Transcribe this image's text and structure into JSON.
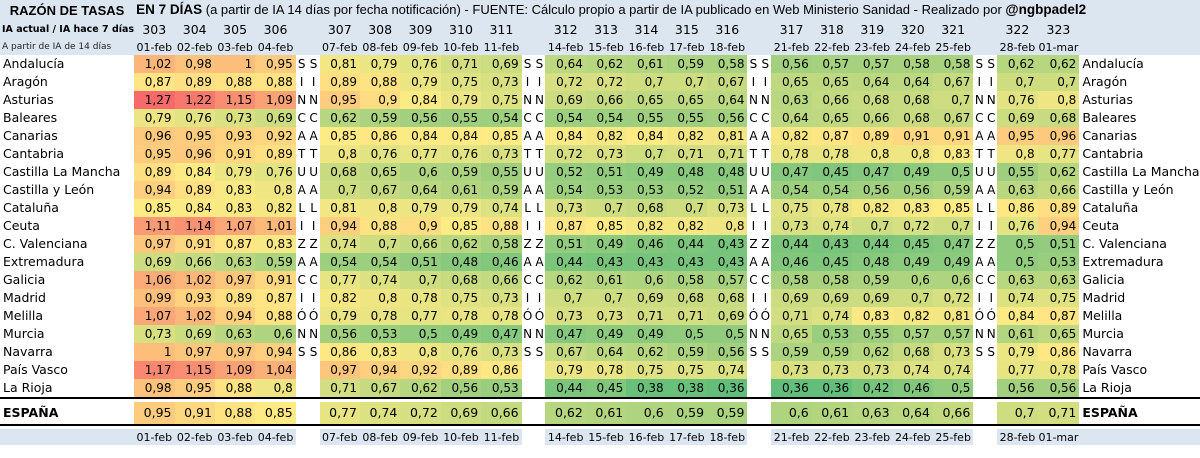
{
  "header": {
    "lead": "RAZÓN DE TASAS",
    "title_bold": "EN 7 DÍAS",
    "title_rest": " (a partir de IA 14 días por fecha notificación) - FUENTE: Cálculo propio a partir de IA publicado en Web Ministerio Sanidad - Realizado por ",
    "author": "@ngbpadel2",
    "subtitle1": "IA actual / IA hace 7 días",
    "subtitle2": "A partir de IA de 14 días"
  },
  "groups": [
    {
      "numbers": [
        "303",
        "304",
        "305",
        "306"
      ],
      "dates": [
        "01-feb",
        "02-feb",
        "03-feb",
        "04-feb"
      ],
      "sep": "SIN"
    },
    {
      "numbers": [
        "307",
        "308",
        "309",
        "310",
        "311"
      ],
      "dates": [
        "07-feb",
        "08-feb",
        "09-feb",
        "10-feb",
        "11-feb"
      ],
      "sep": "SIN"
    },
    {
      "numbers": [
        "312",
        "313",
        "314",
        "315",
        "316"
      ],
      "dates": [
        "14-feb",
        "15-feb",
        "16-feb",
        "17-feb",
        "18-feb"
      ],
      "sep": "SIN"
    },
    {
      "numbers": [
        "317",
        "318",
        "319",
        "320",
        "321"
      ],
      "dates": [
        "21-feb",
        "22-feb",
        "23-feb",
        "24-feb",
        "25-feb"
      ],
      "sep": "SIN"
    },
    {
      "numbers": [
        "322",
        "323"
      ],
      "dates": [
        "28-feb",
        "01-mar"
      ],
      "sep": null
    }
  ],
  "sep_words": {
    "SIN": [
      "S",
      "I",
      "N",
      "C",
      "A",
      "T",
      "U",
      "A",
      "L",
      "I",
      "Z",
      "A",
      "C",
      "I",
      "Ó",
      "N",
      "S"
    ]
  },
  "chart_data": {
    "type": "table",
    "columns": [
      "01-feb",
      "02-feb",
      "03-feb",
      "04-feb",
      "07-feb",
      "08-feb",
      "09-feb",
      "10-feb",
      "11-feb",
      "14-feb",
      "15-feb",
      "16-feb",
      "17-feb",
      "18-feb",
      "21-feb",
      "22-feb",
      "23-feb",
      "24-feb",
      "25-feb",
      "28-feb",
      "01-mar"
    ],
    "column_numbers": [
      "303",
      "304",
      "305",
      "306",
      "307",
      "308",
      "309",
      "310",
      "311",
      "312",
      "313",
      "314",
      "315",
      "316",
      "317",
      "318",
      "319",
      "320",
      "321",
      "322",
      "323"
    ],
    "rows": [
      {
        "name": "Andalucía",
        "values": [
          "1,02",
          "0,98",
          "1",
          "0,95",
          "0,81",
          "0,79",
          "0,76",
          "0,71",
          "0,69",
          "0,64",
          "0,62",
          "0,61",
          "0,59",
          "0,58",
          "0,56",
          "0,57",
          "0,57",
          "0,58",
          "0,58",
          "0,62",
          "0,62"
        ]
      },
      {
        "name": "Aragón",
        "values": [
          "0,87",
          "0,89",
          "0,88",
          "0,88",
          "0,89",
          "0,88",
          "0,79",
          "0,75",
          "0,73",
          "0,72",
          "0,72",
          "0,7",
          "0,7",
          "0,67",
          "0,65",
          "0,65",
          "0,64",
          "0,64",
          "0,67",
          "0,7",
          "0,7"
        ]
      },
      {
        "name": "Asturias",
        "values": [
          "1,27",
          "1,22",
          "1,15",
          "1,09",
          "0,95",
          "0,9",
          "0,84",
          "0,79",
          "0,75",
          "0,69",
          "0,66",
          "0,65",
          "0,65",
          "0,64",
          "0,63",
          "0,66",
          "0,68",
          "0,68",
          "0,7",
          "0,76",
          "0,8"
        ]
      },
      {
        "name": "Baleares",
        "values": [
          "0,79",
          "0,76",
          "0,73",
          "0,69",
          "0,62",
          "0,59",
          "0,56",
          "0,55",
          "0,54",
          "0,54",
          "0,54",
          "0,55",
          "0,55",
          "0,56",
          "0,64",
          "0,65",
          "0,66",
          "0,68",
          "0,67",
          "0,69",
          "0,68"
        ]
      },
      {
        "name": "Canarias",
        "values": [
          "0,96",
          "0,95",
          "0,93",
          "0,92",
          "0,85",
          "0,86",
          "0,84",
          "0,84",
          "0,85",
          "0,84",
          "0,82",
          "0,84",
          "0,82",
          "0,81",
          "0,82",
          "0,87",
          "0,89",
          "0,91",
          "0,91",
          "0,95",
          "0,96"
        ]
      },
      {
        "name": "Cantabria",
        "values": [
          "0,95",
          "0,96",
          "0,91",
          "0,89",
          "0,8",
          "0,76",
          "0,77",
          "0,76",
          "0,73",
          "0,72",
          "0,73",
          "0,7",
          "0,71",
          "0,71",
          "0,78",
          "0,78",
          "0,8",
          "0,8",
          "0,83",
          "0,8",
          "0,77"
        ]
      },
      {
        "name": "Castilla La Mancha",
        "values": [
          "0,89",
          "0,84",
          "0,79",
          "0,76",
          "0,68",
          "0,65",
          "0,6",
          "0,59",
          "0,55",
          "0,52",
          "0,51",
          "0,49",
          "0,48",
          "0,48",
          "0,47",
          "0,45",
          "0,47",
          "0,49",
          "0,5",
          "0,55",
          "0,62"
        ]
      },
      {
        "name": "Castilla y León",
        "values": [
          "0,94",
          "0,89",
          "0,83",
          "0,8",
          "0,7",
          "0,67",
          "0,64",
          "0,61",
          "0,59",
          "0,54",
          "0,53",
          "0,53",
          "0,52",
          "0,51",
          "0,54",
          "0,54",
          "0,56",
          "0,56",
          "0,59",
          "0,63",
          "0,66"
        ]
      },
      {
        "name": "Cataluña",
        "values": [
          "0,85",
          "0,84",
          "0,83",
          "0,82",
          "0,81",
          "0,8",
          "0,79",
          "0,79",
          "0,74",
          "0,73",
          "0,7",
          "0,68",
          "0,7",
          "0,73",
          "0,75",
          "0,78",
          "0,82",
          "0,83",
          "0,85",
          "0,86",
          "0,89"
        ]
      },
      {
        "name": "Ceuta",
        "values": [
          "1,11",
          "1,14",
          "1,07",
          "1,01",
          "0,94",
          "0,88",
          "0,9",
          "0,85",
          "0,88",
          "0,87",
          "0,85",
          "0,82",
          "0,82",
          "0,8",
          "0,73",
          "0,74",
          "0,7",
          "0,72",
          "0,7",
          "0,76",
          "0,94"
        ]
      },
      {
        "name": "C. Valenciana",
        "values": [
          "0,97",
          "0,91",
          "0,87",
          "0,83",
          "0,74",
          "0,7",
          "0,66",
          "0,62",
          "0,58",
          "0,51",
          "0,49",
          "0,46",
          "0,44",
          "0,43",
          "0,44",
          "0,43",
          "0,44",
          "0,45",
          "0,47",
          "0,5",
          "0,51"
        ]
      },
      {
        "name": "Extremadura",
        "values": [
          "0,69",
          "0,66",
          "0,63",
          "0,59",
          "0,54",
          "0,54",
          "0,51",
          "0,48",
          "0,46",
          "0,44",
          "0,43",
          "0,43",
          "0,43",
          "0,43",
          "0,46",
          "0,45",
          "0,48",
          "0,49",
          "0,49",
          "0,5",
          "0,53"
        ]
      },
      {
        "name": "Galicia",
        "values": [
          "1,06",
          "1,02",
          "0,97",
          "0,91",
          "0,77",
          "0,74",
          "0,7",
          "0,68",
          "0,66",
          "0,62",
          "0,61",
          "0,6",
          "0,58",
          "0,57",
          "0,58",
          "0,58",
          "0,59",
          "0,6",
          "0,6",
          "0,63",
          "0,63"
        ]
      },
      {
        "name": "Madrid",
        "values": [
          "0,99",
          "0,93",
          "0,89",
          "0,87",
          "0,82",
          "0,8",
          "0,78",
          "0,75",
          "0,73",
          "0,7",
          "0,7",
          "0,69",
          "0,68",
          "0,68",
          "0,69",
          "0,69",
          "0,69",
          "0,7",
          "0,72",
          "0,74",
          "0,75"
        ]
      },
      {
        "name": "Melilla",
        "values": [
          "1,07",
          "1,02",
          "0,94",
          "0,88",
          "0,79",
          "0,78",
          "0,77",
          "0,78",
          "0,78",
          "0,73",
          "0,73",
          "0,71",
          "0,71",
          "0,69",
          "0,71",
          "0,74",
          "0,83",
          "0,82",
          "0,81",
          "0,84",
          "0,87"
        ]
      },
      {
        "name": "Murcia",
        "values": [
          "0,73",
          "0,69",
          "0,63",
          "0,6",
          "0,56",
          "0,53",
          "0,5",
          "0,49",
          "0,47",
          "0,47",
          "0,49",
          "0,49",
          "0,5",
          "0,5",
          "0,65",
          "0,53",
          "0,55",
          "0,57",
          "0,57",
          "0,61",
          "0,65"
        ]
      },
      {
        "name": "Navarra",
        "values": [
          "1",
          "0,97",
          "0,97",
          "0,94",
          "0,86",
          "0,83",
          "0,8",
          "0,76",
          "0,73",
          "0,67",
          "0,64",
          "0,62",
          "0,59",
          "0,56",
          "0,59",
          "0,59",
          "0,62",
          "0,68",
          "0,73",
          "0,79",
          "0,86"
        ]
      },
      {
        "name": "País Vasco",
        "values": [
          "1,17",
          "1,15",
          "1,09",
          "1,04",
          "0,97",
          "0,94",
          "0,92",
          "0,89",
          "0,86",
          "0,79",
          "0,78",
          "0,75",
          "0,75",
          "0,74",
          "0,73",
          "0,73",
          "0,73",
          "0,74",
          "0,74",
          "0,77",
          "0,78"
        ]
      },
      {
        "name": "La Rioja",
        "values": [
          "0,98",
          "0,95",
          "0,88",
          "0,8",
          "0,71",
          "0,67",
          "0,62",
          "0,56",
          "0,53",
          "0,44",
          "0,45",
          "0,38",
          "0,38",
          "0,36",
          "0,36",
          "0,36",
          "0,42",
          "0,46",
          "0,5",
          "0,56",
          "0,56"
        ]
      }
    ],
    "total": {
      "name": "ESPAÑA",
      "values": [
        "0,95",
        "0,91",
        "0,88",
        "0,85",
        "0,77",
        "0,74",
        "0,72",
        "0,69",
        "0,66",
        "0,62",
        "0,61",
        "0,6",
        "0,59",
        "0,59",
        "0,6",
        "0,61",
        "0,63",
        "0,64",
        "0,66",
        "0,7",
        "0,71"
      ]
    }
  }
}
